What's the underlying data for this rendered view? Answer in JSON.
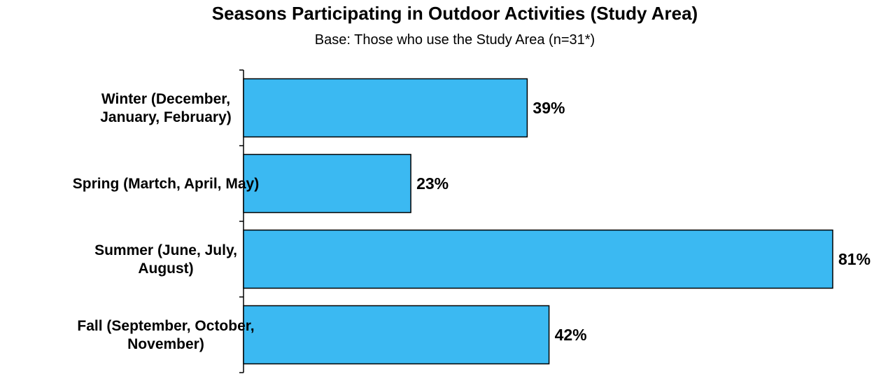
{
  "chart_data": {
    "type": "bar",
    "orientation": "horizontal",
    "title": "Seasons Participating in Outdoor Activities (Study Area)",
    "subtitle": "Base: Those who use the Study Area (n=31*)",
    "categories": [
      [
        "Winter (December,",
        "January, February)"
      ],
      [
        "Spring (Martch, April, May)"
      ],
      [
        "Summer (June, July,",
        "August)"
      ],
      [
        "Fall (September, October,",
        "November)"
      ]
    ],
    "values": [
      39,
      23,
      81,
      42
    ],
    "value_labels": [
      "39%",
      "23%",
      "81%",
      "42%"
    ],
    "xlim": [
      0,
      81
    ],
    "bar_color": "#3BB9F2",
    "grid": false,
    "legend": "none"
  }
}
